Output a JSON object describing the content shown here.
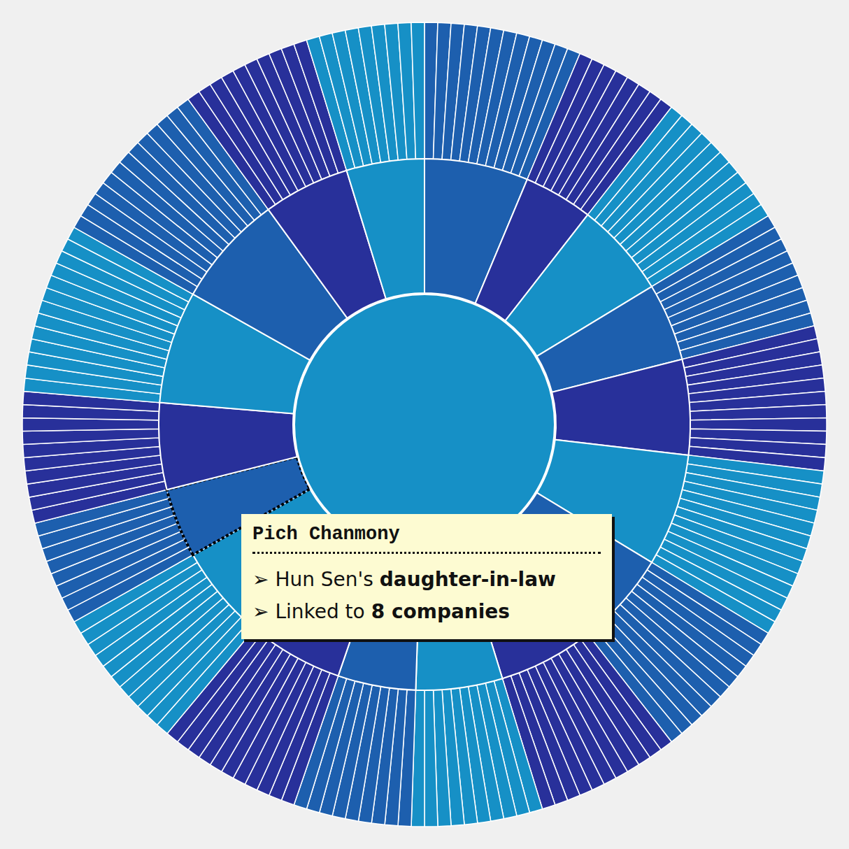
{
  "chart_data": {
    "type": "sunburst",
    "people": [
      {
        "companies": 12
      },
      {
        "companies": 8
      },
      {
        "companies": 11
      },
      {
        "companies": 9
      },
      {
        "companies": 11
      },
      {
        "companies": 13
      },
      {
        "companies": 11
      },
      {
        "companies": 11
      },
      {
        "companies": 10
      },
      {
        "companies": 9
      },
      {
        "companies": 11
      },
      {
        "companies": 11
      },
      {
        "companies": 8,
        "name": "Pich Chanmony",
        "bullet": "➢",
        "relation_prefix": "Hun Sen's",
        "relation": "daughter-in-law",
        "linked_prefix": "Linked to",
        "companies_word": "companies",
        "highlighted": true
      },
      {
        "companies": 10
      },
      {
        "companies": 13
      },
      {
        "companies": 13
      },
      {
        "companies": 10
      },
      {
        "companies": 9
      }
    ],
    "colors": [
      "#1d5fae",
      "#28309a",
      "#1690c6",
      "#1d5fae",
      "#28309a",
      "#1690c6",
      "#1d5fae",
      "#28309a",
      "#1690c6",
      "#1d5fae",
      "#28309a",
      "#1690c6",
      "#1d5fae",
      "#28309a",
      "#1690c6",
      "#1d5fae",
      "#28309a",
      "#1690c6"
    ]
  }
}
